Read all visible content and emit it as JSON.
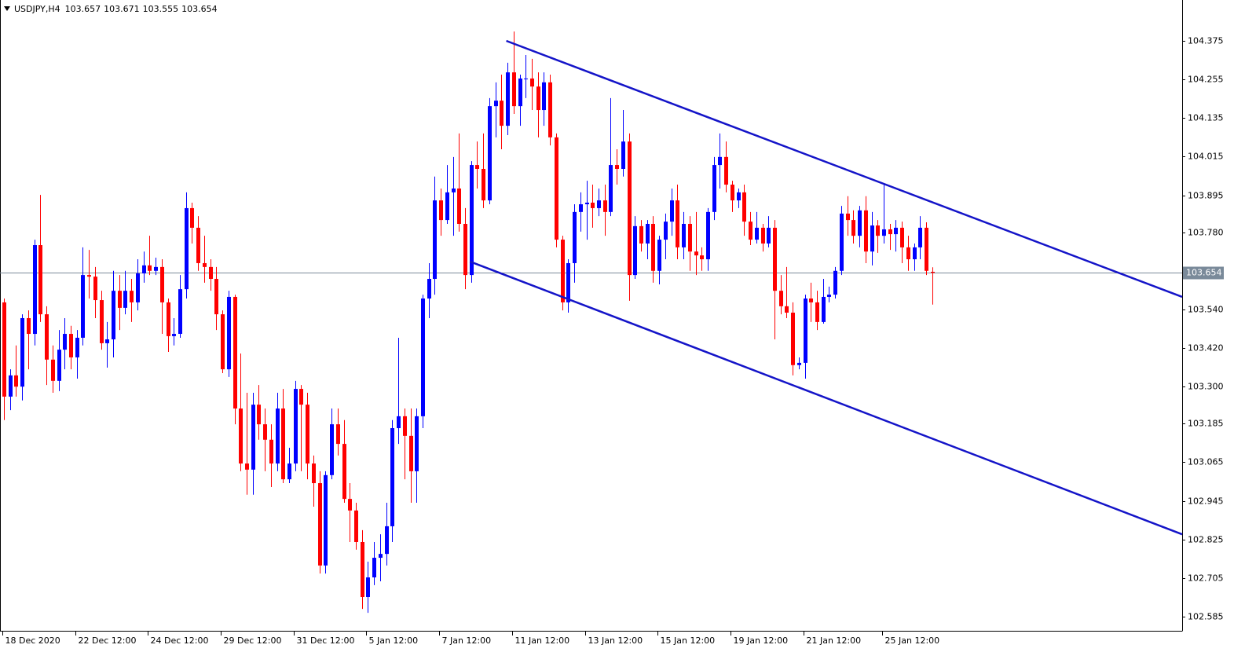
{
  "chart_data": {
    "type": "candlestick",
    "symbol": "USDJPY,H4",
    "open": [
      103.562,
      103.269,
      103.335,
      103.3,
      103.513,
      103.464,
      103.74,
      103.525,
      103.384,
      103.318,
      103.415,
      103.464,
      103.391,
      103.452,
      103.647,
      103.642,
      103.569,
      103.435,
      103.447,
      103.598,
      103.545,
      103.598,
      103.562,
      103.652,
      103.677,
      103.66,
      103.672,
      103.562,
      103.457,
      103.464,
      103.603,
      103.855,
      103.794,
      103.684,
      103.672,
      103.635,
      103.525,
      103.354,
      103.579,
      103.232,
      103.061,
      103.042,
      103.244,
      103.183,
      103.135,
      103.061,
      103.232,
      103.012,
      103.061,
      103.293,
      103.244,
      103.061,
      103.0,
      102.744,
      103.025,
      103.183,
      103.122,
      102.951,
      102.915,
      102.817,
      102.646,
      102.707,
      102.768,
      102.78,
      102.866,
      103.171,
      103.208,
      103.147,
      103.037,
      103.208,
      103.574,
      103.635,
      103.879,
      103.818,
      103.904,
      103.916,
      103.806,
      103.647,
      103.989,
      103.977,
      103.879,
      104.172,
      104.189,
      104.111,
      104.277,
      104.172,
      104.258,
      104.258,
      104.233,
      104.16,
      104.246,
      104.075,
      103.757,
      103.562,
      103.684,
      103.843,
      103.867,
      103.872,
      103.855,
      103.879,
      103.843,
      103.989,
      103.977,
      104.062,
      103.647,
      103.799,
      103.745,
      103.806,
      103.66,
      103.757,
      103.813,
      103.879,
      103.733,
      103.806,
      103.72,
      103.708,
      103.696,
      103.843,
      103.989,
      104.014,
      103.928,
      103.879,
      103.904,
      103.813,
      103.757,
      103.794,
      103.745,
      103.794,
      103.598,
      103.55,
      103.53,
      103.367,
      103.374,
      103.574,
      103.562,
      103.501,
      103.579,
      103.586,
      103.66,
      103.838,
      103.818,
      103.769,
      103.848,
      103.72,
      103.801,
      103.769,
      103.789,
      103.774,
      103.794,
      103.733,
      103.696,
      103.733,
      103.794,
      103.657
    ],
    "high": [
      103.574,
      103.354,
      103.428,
      103.525,
      103.537,
      103.757,
      103.896,
      103.55,
      103.428,
      103.476,
      103.513,
      103.489,
      103.476,
      103.733,
      103.725,
      103.672,
      103.598,
      103.501,
      103.66,
      103.647,
      103.66,
      103.635,
      103.696,
      103.72,
      103.769,
      103.701,
      103.696,
      103.574,
      103.513,
      103.647,
      103.904,
      103.872,
      103.83,
      103.769,
      103.696,
      103.672,
      103.537,
      103.598,
      103.586,
      103.403,
      103.281,
      103.281,
      103.305,
      103.232,
      103.183,
      103.281,
      103.293,
      103.11,
      103.318,
      103.305,
      103.281,
      103.086,
      103.037,
      103.037,
      103.232,
      103.232,
      103.196,
      103.0,
      102.939,
      102.854,
      102.756,
      102.817,
      102.841,
      102.939,
      103.196,
      103.452,
      103.232,
      103.232,
      103.232,
      103.586,
      103.684,
      103.953,
      103.916,
      103.989,
      104.014,
      104.087,
      103.855,
      104.001,
      104.062,
      104.087,
      104.197,
      104.246,
      104.27,
      104.307,
      104.404,
      104.27,
      104.331,
      104.319,
      104.277,
      104.277,
      104.27,
      104.087,
      103.769,
      103.696,
      103.867,
      103.904,
      103.94,
      103.928,
      103.916,
      103.928,
      104.197,
      104.038,
      104.16,
      104.087,
      103.83,
      103.818,
      103.818,
      103.83,
      103.769,
      103.838,
      103.916,
      103.928,
      103.843,
      103.83,
      103.843,
      103.733,
      103.855,
      104.014,
      104.087,
      104.062,
      103.94,
      103.916,
      103.928,
      103.843,
      103.843,
      103.806,
      103.83,
      103.818,
      103.647,
      103.672,
      103.562,
      103.391,
      103.586,
      103.623,
      103.598,
      103.635,
      103.611,
      103.672,
      103.862,
      103.892,
      103.848,
      103.862,
      103.892,
      103.843,
      103.818,
      103.933,
      103.806,
      103.818,
      103.813,
      103.769,
      103.745,
      103.83,
      103.811,
      103.671
    ],
    "low": [
      103.196,
      103.227,
      103.269,
      103.257,
      103.354,
      103.428,
      103.501,
      103.305,
      103.281,
      103.286,
      103.354,
      103.354,
      103.325,
      103.428,
      103.574,
      103.513,
      103.415,
      103.359,
      103.391,
      103.476,
      103.525,
      103.501,
      103.537,
      103.623,
      103.647,
      103.647,
      103.464,
      103.408,
      103.428,
      103.452,
      103.574,
      103.745,
      103.66,
      103.623,
      103.598,
      103.476,
      103.342,
      103.33,
      103.183,
      103.037,
      102.964,
      102.964,
      103.135,
      103.037,
      102.988,
      103.037,
      103.0,
      103.0,
      103.037,
      103.037,
      103.012,
      102.927,
      102.719,
      102.719,
      103.012,
      103.086,
      102.939,
      102.817,
      102.793,
      102.609,
      102.597,
      102.683,
      102.695,
      102.744,
      102.817,
      103.122,
      103.012,
      102.939,
      102.939,
      103.171,
      103.513,
      103.586,
      103.769,
      103.806,
      103.769,
      103.782,
      103.603,
      103.623,
      103.916,
      103.855,
      103.867,
      104.075,
      104.038,
      104.082,
      104.148,
      104.111,
      104.197,
      104.16,
      104.075,
      104.111,
      104.05,
      103.733,
      103.537,
      103.53,
      103.623,
      103.782,
      103.757,
      103.794,
      103.83,
      103.769,
      103.83,
      103.928,
      103.953,
      103.567,
      103.635,
      103.72,
      103.696,
      103.623,
      103.618,
      103.696,
      103.769,
      103.696,
      103.696,
      103.66,
      103.647,
      103.66,
      103.66,
      103.818,
      103.916,
      103.904,
      103.843,
      103.855,
      103.769,
      103.74,
      103.745,
      103.72,
      103.733,
      103.447,
      103.525,
      103.513,
      103.335,
      103.354,
      103.325,
      103.501,
      103.476,
      103.496,
      103.562,
      103.574,
      103.647,
      103.769,
      103.745,
      103.733,
      103.684,
      103.677,
      103.716,
      103.745,
      103.725,
      103.72,
      103.684,
      103.66,
      103.66,
      103.696,
      103.647,
      103.555
    ],
    "close": [
      103.269,
      103.335,
      103.3,
      103.513,
      103.464,
      103.74,
      103.525,
      103.384,
      103.318,
      103.415,
      103.464,
      103.391,
      103.452,
      103.647,
      103.642,
      103.569,
      103.435,
      103.447,
      103.598,
      103.545,
      103.598,
      103.562,
      103.652,
      103.677,
      103.66,
      103.672,
      103.562,
      103.457,
      103.464,
      103.603,
      103.855,
      103.794,
      103.684,
      103.672,
      103.635,
      103.525,
      103.354,
      103.579,
      103.232,
      103.061,
      103.042,
      103.244,
      103.183,
      103.135,
      103.061,
      103.232,
      103.012,
      103.061,
      103.293,
      103.244,
      103.061,
      103.0,
      102.744,
      103.025,
      103.183,
      103.122,
      102.951,
      102.915,
      102.817,
      102.646,
      102.707,
      102.768,
      102.78,
      102.866,
      103.171,
      103.208,
      103.147,
      103.037,
      103.208,
      103.574,
      103.635,
      103.879,
      103.818,
      103.904,
      103.916,
      103.806,
      103.647,
      103.989,
      103.977,
      103.879,
      104.172,
      104.189,
      104.111,
      104.277,
      104.172,
      104.258,
      104.258,
      104.233,
      104.16,
      104.246,
      104.075,
      103.757,
      103.562,
      103.684,
      103.843,
      103.867,
      103.872,
      103.855,
      103.879,
      103.843,
      103.989,
      103.977,
      104.062,
      103.647,
      103.799,
      103.745,
      103.806,
      103.66,
      103.757,
      103.813,
      103.879,
      103.733,
      103.806,
      103.72,
      103.708,
      103.696,
      103.843,
      103.989,
      104.014,
      103.928,
      103.879,
      103.904,
      103.813,
      103.757,
      103.794,
      103.745,
      103.794,
      103.598,
      103.55,
      103.53,
      103.367,
      103.374,
      103.574,
      103.562,
      103.501,
      103.579,
      103.586,
      103.66,
      103.838,
      103.818,
      103.769,
      103.848,
      103.72,
      103.801,
      103.769,
      103.789,
      103.774,
      103.794,
      103.733,
      103.696,
      103.733,
      103.794,
      103.66,
      103.654
    ],
    "up_color": "#0000ff",
    "down_color": "#ff0000",
    "ylim": [
      102.541,
      104.502
    ],
    "yticks": [
      104.375,
      104.255,
      104.135,
      104.015,
      103.895,
      {
        "value": 103.78,
        "label": "103.780"
      },
      {
        "value": 103.54,
        "label": "103.540"
      },
      {
        "value": 103.42,
        "label": "103.420"
      },
      {
        "value": 103.3,
        "label": "103.300"
      },
      103.185,
      103.065,
      102.945,
      102.825,
      102.705,
      102.585
    ],
    "xlim": [
      -0.65,
      194.2
    ],
    "xticks": [
      {
        "value": 0,
        "label": "18 Dec 2020"
      },
      {
        "value": 12,
        "label": "22 Dec 12:00"
      },
      {
        "value": 24,
        "label": "24 Dec 12:00"
      },
      {
        "value": 36,
        "label": "29 Dec 12:00"
      },
      {
        "value": 48,
        "label": "31 Dec 12:00"
      },
      {
        "value": 60,
        "label": "5 Jan 12:00"
      },
      {
        "value": 72,
        "label": "7 Jan 12:00"
      },
      {
        "value": 84,
        "label": "11 Jan 12:00"
      },
      {
        "value": 96,
        "label": "13 Jan 12:00"
      },
      {
        "value": 108,
        "label": "15 Jan 12:00"
      },
      {
        "value": 120,
        "label": "19 Jan 12:00"
      },
      {
        "value": 132,
        "label": "21 Jan 12:00"
      },
      {
        "value": 145,
        "label": "25 Jan 12:00"
      }
    ],
    "trendlines": [
      {
        "x": [
          82.8,
          194.2
        ],
        "y": [
          104.375,
          103.579
        ],
        "color": "#1414c8"
      },
      {
        "x": [
          76.8,
          194.2
        ],
        "y": [
          103.689,
          102.841
        ],
        "color": "#1414c8"
      }
    ],
    "price_line_color": "#7a8a9a"
  }
}
